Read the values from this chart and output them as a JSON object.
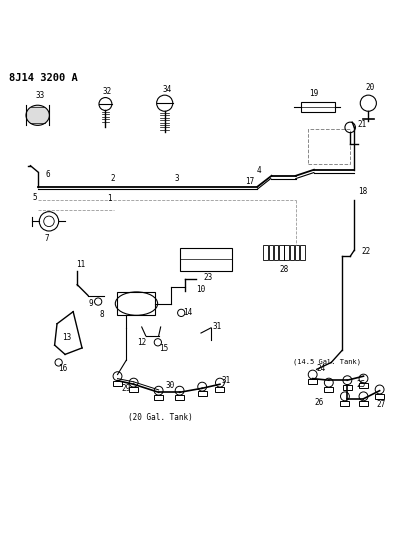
{
  "title": "8J14 3200 A",
  "bg_color": "#ffffff",
  "line_color": "#000000",
  "text_color": "#000000",
  "fig_width": 4.06,
  "fig_height": 5.33,
  "dpi": 100
}
